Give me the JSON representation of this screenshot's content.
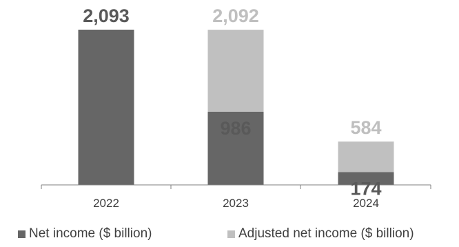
{
  "chart_data": {
    "type": "bar",
    "stacked": true,
    "categories": [
      "2022",
      "2023",
      "2024"
    ],
    "series": [
      {
        "name": "Net income ($ billion)",
        "values": [
          2093,
          986,
          174
        ],
        "color": "#666666"
      },
      {
        "name": "Adjusted net income ($ billion)",
        "values": [
          0,
          1106,
          410
        ],
        "color": "#c0c0c0"
      }
    ],
    "bar_labels": [
      {
        "category": "2022",
        "series": "Net income ($ billion)",
        "text": "2,093",
        "color": "#595959"
      },
      {
        "category": "2023",
        "series": "Adjusted net income ($ billion)",
        "text": "2,092",
        "color": "#bfbfbf"
      },
      {
        "category": "2023",
        "series": "Net income ($ billion)",
        "text": "986",
        "color": "#595959"
      },
      {
        "category": "2024",
        "series": "Adjusted net income ($ billion)",
        "text": "584",
        "color": "#bfbfbf"
      },
      {
        "category": "2024",
        "series": "Net income ($ billion)",
        "text": "174",
        "color": "#595959"
      }
    ],
    "ylim": [
      0,
      2093
    ],
    "grid": false,
    "legend_position": "bottom",
    "title": "",
    "xlabel": "",
    "ylabel": ""
  }
}
